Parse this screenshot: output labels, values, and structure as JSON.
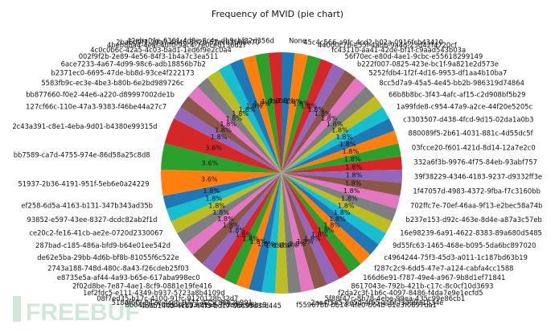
{
  "chart_data": {
    "type": "pie",
    "title": "Frequency of MVID (pie chart)",
    "start": "top",
    "direction": "clockwise",
    "label_placement": "outside",
    "pct_placement": "inside",
    "slices": [
      {
        "label": "None",
        "pct": 1.8
      },
      {
        "label": "45c4c566-a9fc-4cd2-b02a-0916fcb43410",
        "pct": 1.8
      },
      {
        "label": "440d0c76-e55f-4abb-9a4d-23d42f4720cf",
        "pct": 1.8
      },
      {
        "label": "fc43110-aa41-42de-bf1f-c9aad543b03a",
        "pct": 1.8
      },
      {
        "label": "56f70ec-e80d-4ae1-9cbc-e55618299149",
        "pct": 1.8
      },
      {
        "label": "b222f007-0825-423e-bc1f-9a821e2d573e",
        "pct": 1.8
      },
      {
        "label": "5252fdb4-1f2f-4d16-9953-df1aa4b10ba7",
        "pct": 1.8
      },
      {
        "label": "8cc5d7a9-45a5-4e45-bb2b-986319d74864",
        "pct": 1.8
      },
      {
        "label": "66b8b8bc-3f43-4afc-af15-c2d908bf5b29",
        "pct": 1.8
      },
      {
        "label": "1a99fde8-c954-47a9-a2ce-44f20e5205c",
        "pct": 1.8
      },
      {
        "label": "c3303507-d438-4fcd-9d15-02da1a0b3",
        "pct": 1.8
      },
      {
        "label": "880089f5-2b61-4031-881c-4d55dc5f",
        "pct": 1.8
      },
      {
        "label": "03fcce20-f601-421d-8d14-12a7e2c0",
        "pct": 1.8
      },
      {
        "label": "332a6f3b-9976-4f75-84eb-93abf757",
        "pct": 1.8
      },
      {
        "label": "39f38229-4346-4183-9237-d9332ff3e",
        "pct": 1.8
      },
      {
        "label": "1f47057d-4983-4372-9fba-f7c3160bb",
        "pct": 1.8
      },
      {
        "label": "702ffc7e-70ef-46aa-9f13-e2bec58a74b",
        "pct": 1.8
      },
      {
        "label": "b237e153-d92c-463e-8d4e-a87a3c57eb",
        "pct": 1.8
      },
      {
        "label": "16e98239-6a91-4622-8383-89a680d5485",
        "pct": 1.8
      },
      {
        "label": "9d55fc63-1465-468e-b095-5da6bc897020",
        "pct": 1.8
      },
      {
        "label": "c4964244-75f3-45d3-a011-1c187bd63b19",
        "pct": 1.8
      },
      {
        "label": "f287c2c9-6dd5-47e7-a124-cabfa4cc1588",
        "pct": 1.8
      },
      {
        "label": "166d6e91-f787-49e4-a967-9b8d1ef71841",
        "pct": 1.8
      },
      {
        "label": "8617043e-792b-421b-c17c-8c0cf10d3693",
        "pct": 1.8
      },
      {
        "label": "f2da2c3f-1b6c-4097-8486-f4da7e9e1ecfd5",
        "pct": 1.8
      },
      {
        "label": "5f88f47c-8b78-4ebe-99ea-435c99e86cb1",
        "pct": 1.8
      },
      {
        "label": "2aa4f5e5-8e5d-4f65-ac6f-f3399a1534e",
        "pct": 1.8
      },
      {
        "label": "f55967bb-bb14-4fe0-b04b-81e3f0897da1",
        "pct": 1.8
      },
      {
        "label": "4eeb1445-4c69-44f3-bdc7-0bc99d3fd445",
        "pct": 1.8
      },
      {
        "label": "8b0437c7-0cbb-4153-81a8-7fdc08cd8bc3",
        "pct": 1.8
      },
      {
        "label": "518df6f9-842e-4cce-9771-425cd662b991",
        "pct": 1.8
      },
      {
        "label": "08f7ed35-b17c-4100-91fc-9120128b32d7",
        "pct": 1.8
      },
      {
        "label": "1ef2fdc5-e111-4349-b937-5723a8b4109d",
        "pct": 1.8
      },
      {
        "label": "2f02d8be-7e87-4ae1-8cf9-0881e19fe416",
        "pct": 1.8
      },
      {
        "label": "e8735e5a-af44-4a93-b65e-617aba998ec0",
        "pct": 1.8
      },
      {
        "label": "2743a188-748d-480c-8a43-f26cdeb25f03",
        "pct": 1.8
      },
      {
        "label": "de62e5ba-29bb-4d6b-bf8b-81055f6c522e",
        "pct": 1.8
      },
      {
        "label": "287bad-c185-486a-bfd9-b64e01ee542d",
        "pct": 1.8
      },
      {
        "label": "ce20c2-fe16-41cb-ae2e-0720d2330067",
        "pct": 1.8
      },
      {
        "label": "93852-e597-43ee-8327-dcdc82ab2f1d",
        "pct": 1.8
      },
      {
        "label": "ef258-6d5a-4163-b131-347b343ad35b",
        "pct": 1.8
      },
      {
        "label": "51937-2b36-4191-951f-5eb6e0a24229",
        "pct": 3.6
      },
      {
        "label": "bb7589-ca7d-4755-974e-86d58a25c8d8",
        "pct": 3.6
      },
      {
        "label": "2c43a391-c8e1-4eba-9d01-b4380e99315d",
        "pct": 3.6
      },
      {
        "label": "127cf66c-110e-47a3-9383-f46be44a27c7",
        "pct": 1.8
      },
      {
        "label": "bb877660-f0e2-44e6-a220-d89997002de1b",
        "pct": 1.8
      },
      {
        "label": "5583fb9c-ec3e-4be3-b80b-6e2bd989726c",
        "pct": 1.8
      },
      {
        "label": "b2371ec0-6695-47de-bb8d-93ce4f222173",
        "pct": 1.8
      },
      {
        "label": "6ace7233-4a67-4d99-98c6-adb18856b7b2",
        "pct": 1.8
      },
      {
        "label": "002f9f2b-2e89-4e56-84f3-1b4a7c3ea511",
        "pct": 1.8
      },
      {
        "label": "4c0c0b6c-42a5-4c03-bad1-1ed6f9e2c0a4",
        "pct": 1.8
      },
      {
        "label": "4beb8ba4-4eaf-4df0-9ac4-7e0ce0136d2f",
        "pct": 1.8
      },
      {
        "label": "2ba6d9f1-29a7-4846-8b2b-62ecb3bb8e70",
        "pct": 1.8
      },
      {
        "label": "42eba01e-6361-4d8e-8c4e-db9cbf32d356d",
        "pct": 1.8
      }
    ],
    "colors": [
      "#1f77b4",
      "#ff7f0e",
      "#2ca02c",
      "#d62728",
      "#9467bd",
      "#8c564b",
      "#e377c2",
      "#7f7f7f",
      "#bcbd22",
      "#17becf"
    ]
  }
}
